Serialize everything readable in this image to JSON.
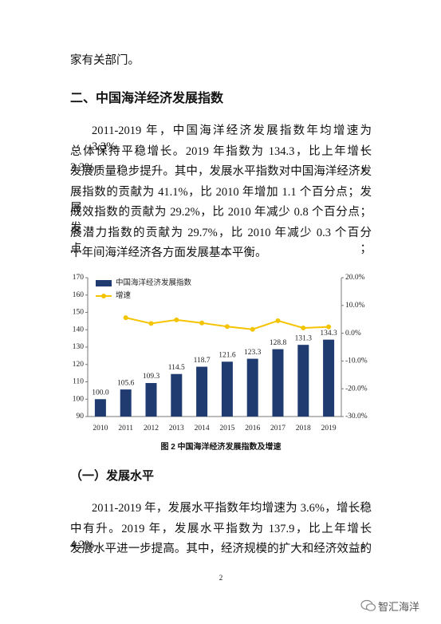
{
  "body_top": "家有关部门。",
  "section_heading": "二、中国海洋经济发展指数",
  "paragraph_1": [
    "2011-2019 年，中国海洋经济发展指数年均增速为 3.3%，",
    "总体保持平稳增长。2019 年指数为 134.3，比上年增长 2.3%，",
    "发展质量稳步提升。其中，发展水平指数对中国海洋经济发",
    "展指数的贡献为 41.1%，比 2010 年增加 1.1 个百分点；发展",
    "成效指数的贡献为 29.2%，比 2010 年减少 0.8 个百分点；发",
    "展潜力指数的贡献为 29.7%，比 2010 年减少 0.3 个百分点；",
    "十年间海洋经济各方面发展基本平衡。"
  ],
  "chart_data": {
    "type": "bar",
    "categories": [
      "2010",
      "2011",
      "2012",
      "2013",
      "2014",
      "2015",
      "2016",
      "2017",
      "2018",
      "2019"
    ],
    "series": [
      {
        "name": "中国海洋经济发展指数",
        "color": "#1f3b70",
        "values": [
          100.0,
          105.6,
          109.3,
          114.5,
          118.7,
          121.6,
          123.3,
          128.8,
          131.3,
          134.3
        ],
        "value_labels": [
          "100.0",
          "105.6",
          "109.3",
          "114.5",
          "118.7",
          "121.6",
          "123.3",
          "128.8",
          "131.3",
          "134.3"
        ]
      },
      {
        "name": "增速",
        "type": "line",
        "color": "#f5c400",
        "axis": "y2",
        "values": [
          null,
          5.6,
          3.5,
          4.8,
          3.7,
          2.4,
          1.4,
          4.5,
          1.9,
          2.3
        ]
      }
    ],
    "ylim": [
      90,
      170
    ],
    "yticks": [
      90,
      100,
      110,
      120,
      130,
      140,
      150,
      160,
      170
    ],
    "y2lim": [
      -30,
      20
    ],
    "y2ticks": [
      {
        "value": -30,
        "label": "-30.0%"
      },
      {
        "value": -20,
        "label": "-20.0%"
      },
      {
        "value": -10,
        "label": "-10.0%"
      },
      {
        "value": 0,
        "label": "0.0%"
      },
      {
        "value": 10,
        "label": "10.0%"
      },
      {
        "value": 20,
        "label": "20.0%"
      }
    ],
    "grid": false,
    "legend": "upper left"
  },
  "figure_caption": "图 2 中国海洋经济发展指数及增速",
  "subsection_heading": "（一）发展水平",
  "paragraph_2": [
    "2011-2019 年，发展水平指数年均增速为 3.6%，增长稳",
    "中有升。2019 年，发展水平指数为 137.9，比上年增长 4.2%，",
    "发展水平进一步提高。其中，经济规模的扩大和经济效益的"
  ],
  "page_number": "2",
  "watermark": "智汇海洋"
}
